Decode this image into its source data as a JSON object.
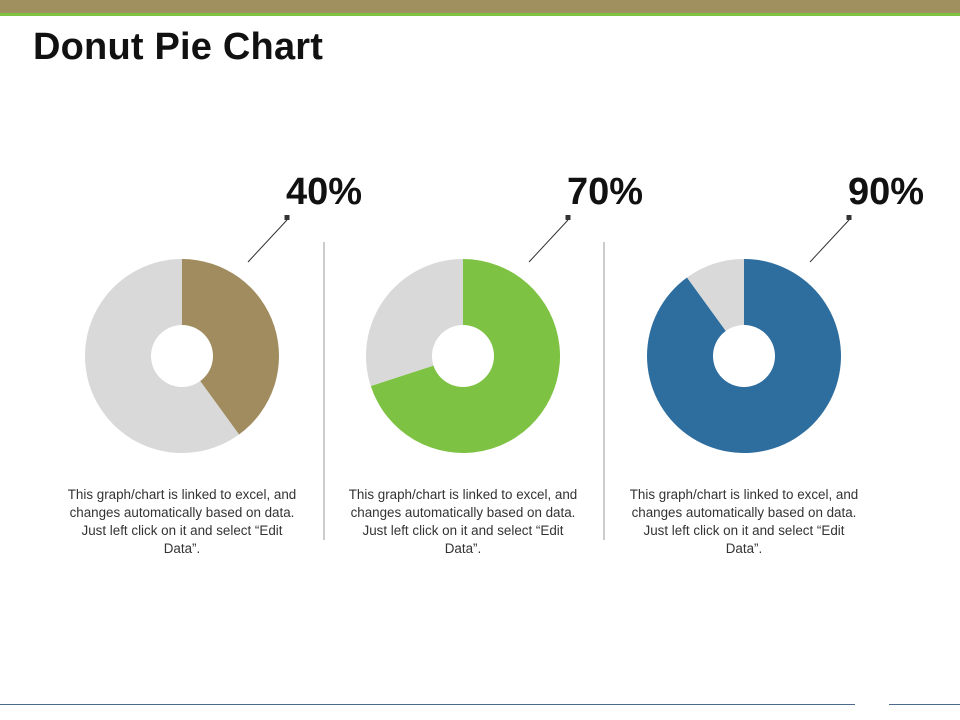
{
  "page": {
    "title": "Donut Pie Chart"
  },
  "colors": {
    "top_bar": "#a09060",
    "top_accent": "#7dc243",
    "remainder": "#d9d9d9",
    "bottom_line": "#4a6a8c"
  },
  "chart_data": [
    {
      "type": "pie",
      "label": "40%",
      "slices": [
        {
          "value": 40,
          "color": "#a08c5f"
        },
        {
          "value": 60,
          "color": "#d9d9d9"
        }
      ],
      "caption": "This graph/chart is linked to excel, and changes automatically based on data. Just left click on it and select “Edit Data”."
    },
    {
      "type": "pie",
      "label": "70%",
      "slices": [
        {
          "value": 70,
          "color": "#7dc243"
        },
        {
          "value": 30,
          "color": "#d9d9d9"
        }
      ],
      "caption": "This graph/chart is linked to excel, and changes automatically based on data. Just left click on it and select “Edit Data”."
    },
    {
      "type": "pie",
      "label": "90%",
      "slices": [
        {
          "value": 90,
          "color": "#2e6e9e"
        },
        {
          "value": 10,
          "color": "#d9d9d9"
        }
      ],
      "caption": "This graph/chart is linked to excel, and changes automatically based on data. Just left click on it and select “Edit Data”."
    }
  ]
}
